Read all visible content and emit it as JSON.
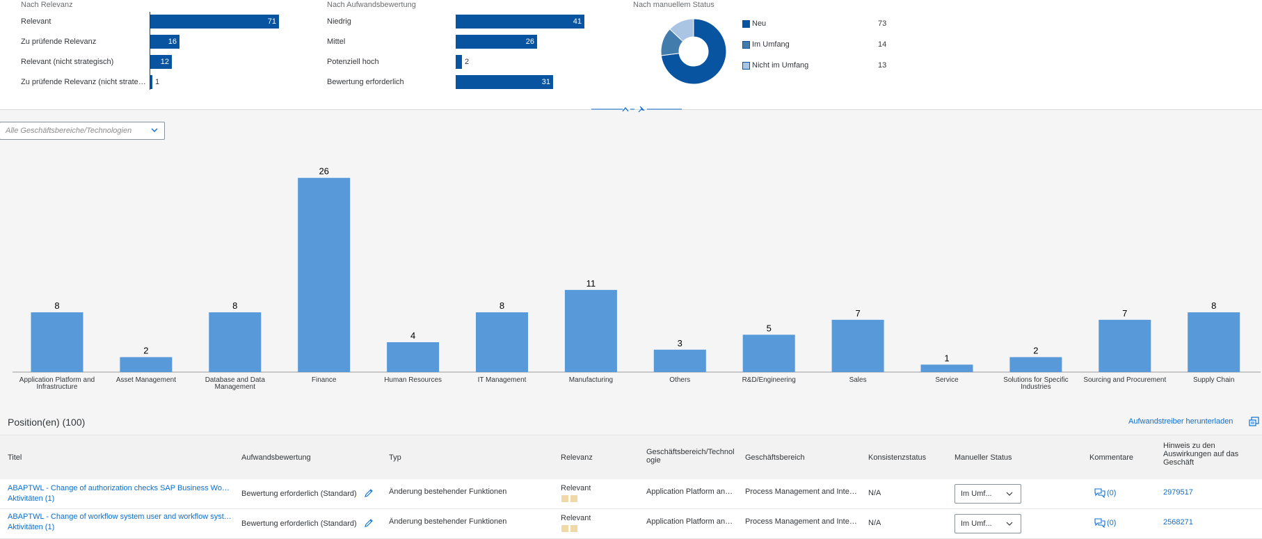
{
  "kpi": {
    "relevance": {
      "title": "Nach Relevanz",
      "rows": [
        {
          "label": "Relevant",
          "value": 71,
          "value_text": "71"
        },
        {
          "label": "Zu prüfende Relevanz",
          "value": 16,
          "value_text": "16"
        },
        {
          "label": "Relevant (nicht strategisch)",
          "value": 12,
          "value_text": "12"
        },
        {
          "label": "Zu prüfende Relevanz (nicht strategisch)",
          "value": 1,
          "value_text": "1"
        }
      ]
    },
    "effort": {
      "title": "Nach Aufwandsbewertung",
      "rows": [
        {
          "label": "Niedrig",
          "value": 41,
          "value_text": "41"
        },
        {
          "label": "Mittel",
          "value": 26,
          "value_text": "26"
        },
        {
          "label": "Potenziell hoch",
          "value": 2,
          "value_text": "2"
        },
        {
          "label": "Bewertung erforderlich",
          "value": 31,
          "value_text": "31"
        }
      ]
    },
    "status": {
      "title": "Nach manuellem Status",
      "items": [
        {
          "label": "Neu",
          "value": 73,
          "value_text": "73",
          "color": "#0854a0"
        },
        {
          "label": "Im Umfang",
          "value": 14,
          "value_text": "14",
          "color": "#427cac"
        },
        {
          "label": "Nicht im Umfang",
          "value": 13,
          "value_text": "13",
          "color": "#a9c5e3"
        }
      ]
    }
  },
  "filter": {
    "placeholder": "Alle Geschäftsbereiche/Technologien"
  },
  "chart_data": {
    "type": "bar",
    "categories": [
      "Application Platform and Infrastructure",
      "Asset Management",
      "Database and Data Management",
      "Finance",
      "Human Resources",
      "IT Management",
      "Manufacturing",
      "Others",
      "R&D/Engineering",
      "Sales",
      "Service",
      "Solutions for Specific Industries",
      "Sourcing and Procurement",
      "Supply Chain"
    ],
    "values": [
      8,
      2,
      8,
      26,
      4,
      8,
      11,
      3,
      5,
      7,
      1,
      2,
      7,
      8
    ],
    "ylim": [
      0,
      27
    ],
    "color": "#5899da",
    "grid": false
  },
  "table": {
    "title": "Position(en) (100)",
    "download_label": "Aufwandstreiber herunterladen",
    "columns": [
      "Titel",
      "Aufwandsbewertung",
      "Typ",
      "Relevanz",
      "Geschäftsbereich/Technologie",
      "Geschäftsbereich",
      "Konsistenzstatus",
      "Manueller Status",
      "Kommentare",
      "Hinweis zu den Auswirkungen auf das Geschäft"
    ],
    "rows": [
      {
        "title": "ABAPTWL - Change of authorization checks SAP Business Workflow",
        "activities": "Aktivitäten (1)",
        "effort": "Bewertung erforderlich (Standard)",
        "type": "Änderung bestehender Funktionen",
        "relevance": "Relevant",
        "area_tech": "Application Platform and Infrastructure",
        "area": "Process Management and Integration",
        "consistency": "N/A",
        "manual_status": "Im Umf...",
        "comments": "(0)",
        "note": "2979517"
      },
      {
        "title": "ABAPTWL - Change of workflow system user and workflow system jobs",
        "activities": "Aktivitäten (1)",
        "effort": "Bewertung erforderlich (Standard)",
        "type": "Änderung bestehender Funktionen",
        "relevance": "Relevant",
        "area_tech": "Application Platform and Infrastructure",
        "area": "Process Management and Integration",
        "consistency": "N/A",
        "manual_status": "Im Umf...",
        "comments": "(0)",
        "note": "2568271"
      }
    ]
  }
}
